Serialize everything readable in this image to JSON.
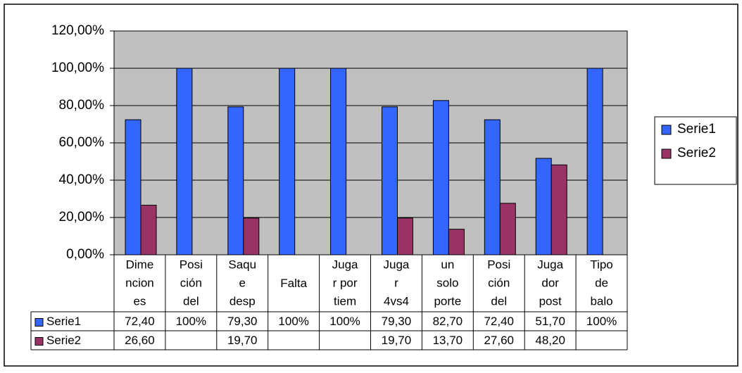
{
  "chart_data": {
    "type": "bar",
    "categories": [
      "Dime\nncion\nes",
      "Posi\nción\ndel",
      "Saqu\ne\ndesp",
      "Falta",
      "Juga\nr por\ntiem",
      "Juga\nr\n4vs4",
      "un\nsolo\nporte",
      "Posi\nción\ndel",
      "Juga\ndor\npost",
      "Tipo\nde\nbalo"
    ],
    "series": [
      {
        "name": "Serie1",
        "color": "#3366ff",
        "values": [
          72.4,
          100,
          79.3,
          100,
          100,
          79.3,
          82.7,
          72.4,
          51.7,
          100
        ],
        "value_labels": [
          "72,40",
          "100%",
          "79,30",
          "100%",
          "100%",
          "79,30",
          "82,70",
          "72,40",
          "51,70",
          "100%"
        ]
      },
      {
        "name": "Serie2",
        "color": "#993366",
        "values": [
          26.6,
          null,
          19.7,
          null,
          null,
          19.7,
          13.7,
          27.6,
          48.2,
          null
        ],
        "value_labels": [
          "26,60",
          null,
          "19,70",
          null,
          null,
          "19,70",
          "13,70",
          "27,60",
          "48,20",
          null
        ]
      }
    ],
    "ylim": [
      0,
      120
    ],
    "yticks": [
      {
        "value": 0,
        "label": "0,00%"
      },
      {
        "value": 20,
        "label": "20,00%"
      },
      {
        "value": 40,
        "label": "40,00%"
      },
      {
        "value": 60,
        "label": "60,00%"
      },
      {
        "value": 80,
        "label": "80,00%"
      },
      {
        "value": 100,
        "label": "100,00%"
      },
      {
        "value": 120,
        "label": "120,00%"
      }
    ],
    "grid": true,
    "legend": "right",
    "plot_background": "#c0c0c0"
  }
}
